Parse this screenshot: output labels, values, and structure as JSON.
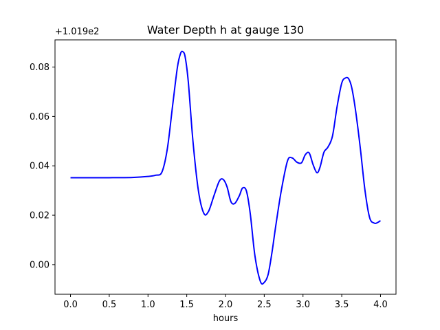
{
  "chart_data": {
    "type": "line",
    "title": "Water Depth h at gauge 130",
    "xlabel": "hours",
    "ylabel": "",
    "y_offset_label": "+1.019e2",
    "xlim": [
      -0.2,
      4.2
    ],
    "ylim": [
      -0.012,
      0.091
    ],
    "x_ticks": [
      0.0,
      0.5,
      1.0,
      1.5,
      2.0,
      2.5,
      3.0,
      3.5,
      4.0
    ],
    "x_tick_labels": [
      "0.0",
      "0.5",
      "1.0",
      "1.5",
      "2.0",
      "2.5",
      "3.0",
      "3.5",
      "4.0"
    ],
    "y_ticks": [
      0.0,
      0.02,
      0.04,
      0.06,
      0.08
    ],
    "y_tick_labels": [
      "0.00",
      "0.02",
      "0.04",
      "0.06",
      "0.08"
    ],
    "grid": false,
    "series": [
      {
        "color": "#0000ff",
        "x": [
          0.0,
          0.5,
          0.8,
          1.0,
          1.1,
          1.18,
          1.25,
          1.32,
          1.38,
          1.42,
          1.45,
          1.48,
          1.52,
          1.58,
          1.65,
          1.72,
          1.78,
          1.85,
          1.92,
          1.97,
          2.02,
          2.07,
          2.12,
          2.18,
          2.22,
          2.27,
          2.32,
          2.38,
          2.45,
          2.5,
          2.55,
          2.6,
          2.65,
          2.72,
          2.8,
          2.86,
          2.92,
          2.98,
          3.03,
          3.08,
          3.13,
          3.18,
          3.22,
          3.27,
          3.32,
          3.38,
          3.44,
          3.5,
          3.55,
          3.59,
          3.63,
          3.68,
          3.74,
          3.8,
          3.86,
          3.92,
          3.96,
          4.0
        ],
        "values": [
          0.0352,
          0.0352,
          0.0353,
          0.0357,
          0.0362,
          0.0375,
          0.047,
          0.065,
          0.08,
          0.0855,
          0.0862,
          0.084,
          0.074,
          0.05,
          0.03,
          0.0208,
          0.0215,
          0.0278,
          0.0338,
          0.0345,
          0.0315,
          0.0255,
          0.0248,
          0.028,
          0.031,
          0.0298,
          0.0205,
          0.0035,
          -0.0068,
          -0.0072,
          -0.004,
          0.005,
          0.016,
          0.03,
          0.042,
          0.0432,
          0.0415,
          0.0412,
          0.0445,
          0.0452,
          0.0405,
          0.0372,
          0.0395,
          0.0455,
          0.0475,
          0.052,
          0.064,
          0.0735,
          0.0756,
          0.0752,
          0.0715,
          0.062,
          0.047,
          0.03,
          0.019,
          0.0168,
          0.017,
          0.0178
        ]
      }
    ]
  }
}
